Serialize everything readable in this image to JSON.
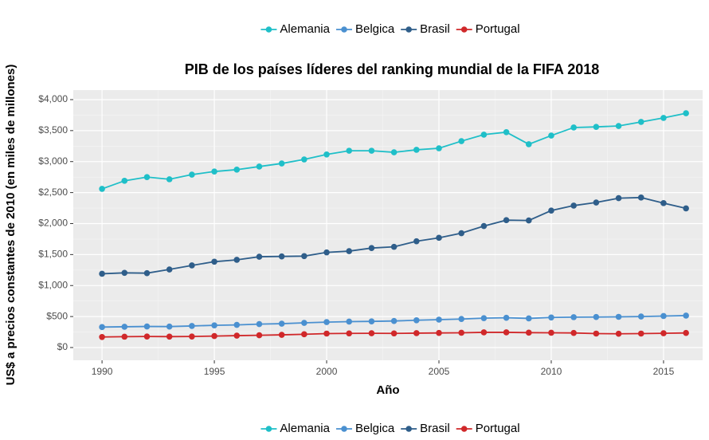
{
  "chart_data": {
    "type": "line",
    "title": "PIB de los países líderes del ranking mundial de la FIFA 2018",
    "x_label": "Año",
    "y_label": "US$ a precios constantes de 2010 (en miles de millones)",
    "x": [
      1990,
      1991,
      1992,
      1993,
      1994,
      1995,
      1996,
      1997,
      1998,
      1999,
      2000,
      2001,
      2002,
      2003,
      2004,
      2005,
      2006,
      2007,
      2008,
      2009,
      2010,
      2011,
      2012,
      2013,
      2014,
      2015,
      2016
    ],
    "series": [
      {
        "name": "Alemania",
        "color": "#1fbfc8",
        "values": [
          2560,
          2690,
          2750,
          2715,
          2790,
          2840,
          2870,
          2920,
          2970,
          3035,
          3115,
          3175,
          3175,
          3150,
          3190,
          3215,
          3330,
          3435,
          3475,
          3280,
          3420,
          3550,
          3560,
          3575,
          3640,
          3705,
          3780
        ]
      },
      {
        "name": "Belgica",
        "color": "#4a90d0",
        "values": [
          330,
          335,
          340,
          338,
          348,
          358,
          365,
          378,
          385,
          398,
          410,
          418,
          422,
          428,
          440,
          450,
          460,
          474,
          480,
          470,
          485,
          490,
          492,
          495,
          500,
          508,
          515
        ]
      },
      {
        "name": "Brasil",
        "color": "#2f5e8a",
        "values": [
          1190,
          1205,
          1200,
          1260,
          1325,
          1385,
          1415,
          1465,
          1470,
          1475,
          1535,
          1555,
          1605,
          1625,
          1715,
          1770,
          1845,
          1960,
          2055,
          2050,
          2210,
          2290,
          2340,
          2410,
          2420,
          2330,
          2245
        ]
      },
      {
        "name": "Portugal",
        "color": "#d0282a",
        "values": [
          170,
          175,
          178,
          176,
          178,
          185,
          192,
          198,
          205,
          214,
          225,
          228,
          230,
          228,
          232,
          235,
          238,
          245,
          245,
          240,
          238,
          235,
          225,
          222,
          225,
          230,
          235
        ]
      }
    ],
    "xlim": [
      1988.72,
      2016.74
    ],
    "xticks": [
      1990,
      1995,
      2000,
      2005,
      2010,
      2015
    ],
    "ylim": [
      -206,
      4154
    ],
    "yticks": [
      {
        "value": 0,
        "label": "$0"
      },
      {
        "value": 500,
        "label": "$500"
      },
      {
        "value": 1000,
        "label": "$1,000"
      },
      {
        "value": 1500,
        "label": "$1,500"
      },
      {
        "value": 2000,
        "label": "$2,000"
      },
      {
        "value": 2500,
        "label": "$2,500"
      },
      {
        "value": 3000,
        "label": "$3,000"
      },
      {
        "value": 3500,
        "label": "$3,500"
      },
      {
        "value": 4000,
        "label": "$4,000"
      }
    ],
    "grid": true
  }
}
